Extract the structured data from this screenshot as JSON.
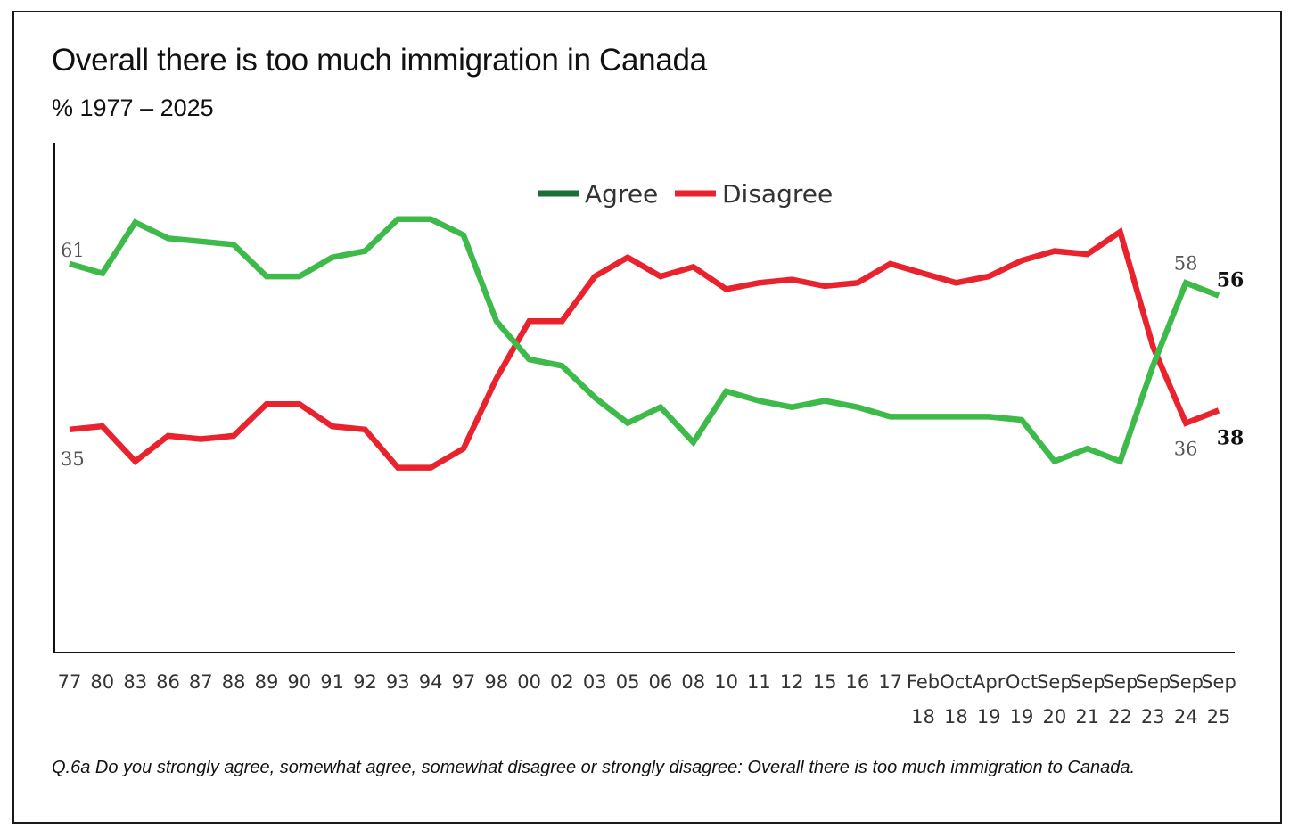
{
  "chart_data": {
    "type": "line",
    "title": "Overall there is too much immigration in Canada",
    "subtitle": "%  1977 – 2025",
    "footnote": "Q.6a  Do you strongly agree, somewhat agree, somewhat disagree or strongly disagree: Overall there is too much immigration to Canada.",
    "categories": [
      [
        "77"
      ],
      [
        "80"
      ],
      [
        "83"
      ],
      [
        "86"
      ],
      [
        "87"
      ],
      [
        "88"
      ],
      [
        "89"
      ],
      [
        "90"
      ],
      [
        "91"
      ],
      [
        "92"
      ],
      [
        "93"
      ],
      [
        "94"
      ],
      [
        "97"
      ],
      [
        "98"
      ],
      [
        "00"
      ],
      [
        "02"
      ],
      [
        "03"
      ],
      [
        "05"
      ],
      [
        "06"
      ],
      [
        "08"
      ],
      [
        "10"
      ],
      [
        "11"
      ],
      [
        "12"
      ],
      [
        "15"
      ],
      [
        "16"
      ],
      [
        "17"
      ],
      [
        "Feb",
        "18"
      ],
      [
        "Oct",
        "18"
      ],
      [
        "Apr",
        "19"
      ],
      [
        "Oct",
        "19"
      ],
      [
        "Sep",
        "20"
      ],
      [
        "Sep",
        "21"
      ],
      [
        "Sep",
        "22"
      ],
      [
        "Sep",
        "23"
      ],
      [
        "Sep",
        "24"
      ],
      [
        "Sep",
        "25"
      ]
    ],
    "ylim": [
      0,
      80
    ],
    "legend_position": "top-center",
    "series": [
      {
        "name": "Agree",
        "legend_color": "#1b6e3a",
        "line_color": "#3dba4a",
        "values": [
          61,
          59.5,
          67.5,
          65,
          64.5,
          64,
          59,
          59,
          62,
          63,
          68,
          68,
          65.5,
          52,
          46,
          45,
          40,
          36,
          38.5,
          33,
          41,
          39.5,
          38.5,
          39.5,
          38.5,
          37,
          37,
          37,
          37,
          36.5,
          30,
          32,
          30,
          45,
          58,
          56
        ],
        "labels": [
          {
            "index": 0,
            "text": "61",
            "bold": false
          },
          {
            "index": 34,
            "text": "58",
            "bold": false
          },
          {
            "index": 35,
            "text": "56",
            "bold": true
          }
        ]
      },
      {
        "name": "Disagree",
        "legend_color": "#e8232e",
        "line_color": "#e8232e",
        "values": [
          35,
          35.5,
          30,
          34,
          33.5,
          34,
          39,
          39,
          35.5,
          35,
          29,
          29,
          32,
          43,
          52,
          52,
          59,
          62,
          59,
          60.5,
          57,
          58,
          58.5,
          57.5,
          58,
          61,
          59.5,
          58,
          59,
          61.5,
          63,
          62.5,
          66,
          48,
          36,
          38
        ],
        "labels": [
          {
            "index": 0,
            "text": "35",
            "bold": false
          },
          {
            "index": 34,
            "text": "36",
            "bold": false
          },
          {
            "index": 35,
            "text": "38",
            "bold": true
          }
        ]
      }
    ]
  }
}
